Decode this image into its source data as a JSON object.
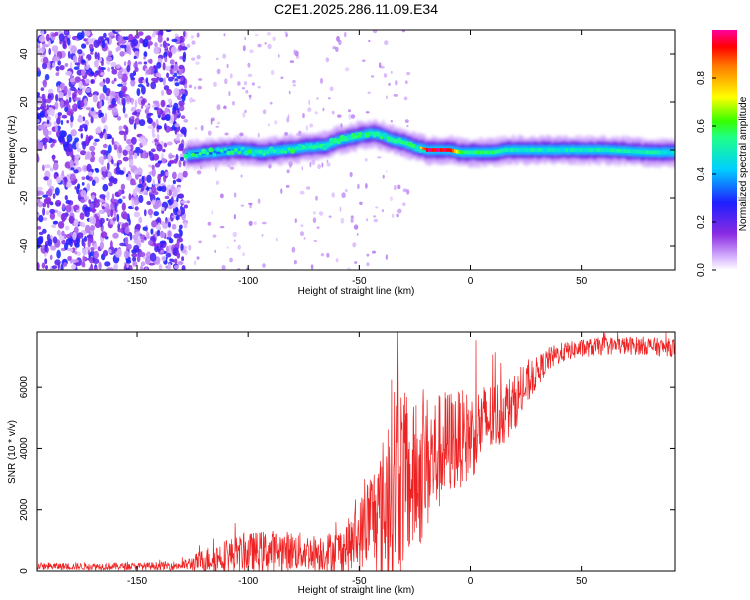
{
  "title": "C2E1.2025.286.11.09.E34",
  "chart_data": [
    {
      "type": "heatmap",
      "name": "spectrogram",
      "xlabel": "Height of straight line (km)",
      "ylabel": "Frequency (Hz)",
      "xlim": [
        -195,
        92
      ],
      "ylim": [
        -50,
        50
      ],
      "xticks": [
        -150,
        -100,
        -50,
        0,
        50
      ],
      "yticks": [
        -40,
        -20,
        0,
        20,
        40
      ],
      "colorbar": {
        "label": "Normalized spectral amplitude",
        "range": [
          0,
          1
        ],
        "ticks": [
          0.0,
          0.2,
          0.4,
          0.6,
          0.8
        ],
        "tick_labels": [
          "0.0",
          "0.2",
          "0.4",
          "0.6",
          "0.8"
        ]
      },
      "noise_region_x": [
        -195,
        -128
      ],
      "signal_start_x": -128,
      "ridge": {
        "x": [
          -128,
          -115,
          -105,
          -95,
          -85,
          -75,
          -65,
          -60,
          -55,
          -50,
          -45,
          -40,
          -35,
          -30,
          -25,
          -20,
          -10,
          -5,
          0,
          5,
          10,
          15,
          20,
          40,
          60,
          80,
          92
        ],
        "freq": [
          -2,
          -1,
          0,
          -1,
          0,
          1,
          2,
          4,
          5,
          6,
          7,
          6,
          4,
          3,
          1,
          0,
          0,
          -1,
          -1,
          -1,
          -1,
          0,
          0,
          0,
          0,
          -1,
          -1
        ],
        "amplitude": [
          0.3,
          0.35,
          0.4,
          0.45,
          0.45,
          0.5,
          0.5,
          0.55,
          0.55,
          0.6,
          0.55,
          0.5,
          0.55,
          0.5,
          0.6,
          0.95,
          0.95,
          0.6,
          0.55,
          0.6,
          0.55,
          0.5,
          0.5,
          0.48,
          0.5,
          0.5,
          0.45
        ]
      }
    },
    {
      "type": "line",
      "name": "snr",
      "xlabel": "Height of straight line (km)",
      "ylabel": "SNR (10 * v/v)",
      "xlim": [
        -195,
        92
      ],
      "ylim": [
        0,
        7800
      ],
      "xticks": [
        -150,
        -100,
        -50,
        0,
        50
      ],
      "yticks": [
        0,
        2000,
        4000,
        6000
      ],
      "color": "#ee2222",
      "series": [
        {
          "name": "SNR",
          "x": [
            -195,
            -170,
            -150,
            -130,
            -125,
            -120,
            -110,
            -100,
            -90,
            -80,
            -70,
            -60,
            -55,
            -50,
            -45,
            -40,
            -37,
            -35,
            -33,
            -30,
            -28,
            -25,
            -22,
            -20,
            -15,
            -10,
            -5,
            0,
            5,
            10,
            15,
            20,
            25,
            30,
            35,
            40,
            45,
            50,
            55,
            60,
            65,
            70,
            75,
            80,
            85,
            92
          ],
          "base": [
            150,
            150,
            150,
            180,
            250,
            350,
            500,
            600,
            650,
            650,
            600,
            650,
            800,
            1100,
            1800,
            1800,
            2500,
            3000,
            3200,
            3000,
            2800,
            3000,
            3200,
            3500,
            3800,
            4200,
            4300,
            4400,
            4800,
            5000,
            5200,
            5500,
            6000,
            6500,
            6900,
            7100,
            7200,
            7250,
            7300,
            7350,
            7350,
            7350,
            7350,
            7350,
            7300,
            7300
          ],
          "spread": [
            120,
            120,
            120,
            150,
            250,
            400,
            550,
            650,
            700,
            650,
            600,
            700,
            900,
            1200,
            1600,
            2200,
            3200,
            3500,
            3500,
            3000,
            2500,
            2500,
            2400,
            2300,
            2000,
            1800,
            1600,
            1500,
            1300,
            1200,
            1100,
            900,
            700,
            500,
            400,
            350,
            300,
            300,
            300,
            300,
            300,
            300,
            300,
            300,
            300,
            300
          ]
        }
      ]
    }
  ]
}
